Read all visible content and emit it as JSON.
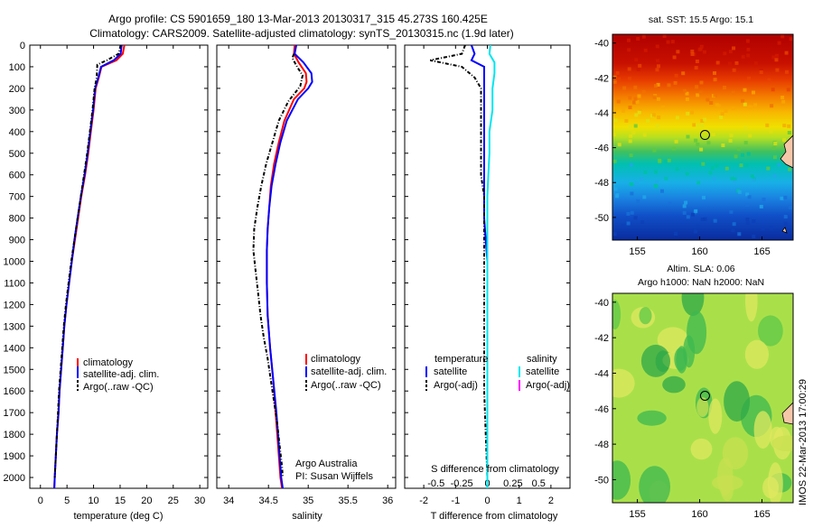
{
  "header": {
    "line1": "Argo profile: CS 5901659_180 13-Mar-2013 20130317_315 45.273S 160.425E",
    "line2": "Climatology: CARS2009. Satellite-adjusted climatology: synTS_20130315.nc (1.9d later)"
  },
  "colors": {
    "climatology": "#ff0000",
    "satellite": "#0000ff",
    "argo": "#000000",
    "salinity_satellite": "#00e5ee",
    "salinity_argo": "#ff00ff"
  },
  "depth_axis": {
    "range": [
      0,
      2050
    ],
    "ticks": [
      0,
      100,
      200,
      300,
      400,
      500,
      600,
      700,
      800,
      900,
      1000,
      1100,
      1200,
      1300,
      1400,
      1500,
      1600,
      1700,
      1800,
      1900,
      2000
    ]
  },
  "temperature_panel": {
    "xlabel": "temperature (deg C)",
    "xlim": [
      -2,
      31.5
    ],
    "xticks": [
      0,
      5,
      10,
      15,
      20,
      25,
      30
    ],
    "legend": [
      "climatology",
      "satellite-adj. clim.",
      "Argo(..raw -QC)"
    ]
  },
  "salinity_panel": {
    "xlabel": "salinity",
    "xlim": [
      33.85,
      36.1
    ],
    "xticks": [
      34,
      34.5,
      35,
      35.5,
      36
    ],
    "xtick_labels": [
      "34",
      "34.5",
      "35",
      "35.5",
      "36"
    ],
    "legend": [
      "climatology",
      "satellite-adj. clim.",
      "Argo(..raw -QC)"
    ],
    "note_line1": "Argo Australia",
    "note_line2": "PI: Susan Wijffels"
  },
  "difference_panel": {
    "xlabel": "T difference from climatology",
    "xlim": [
      -2.6,
      2.6
    ],
    "xticks": [
      -2,
      -1,
      0,
      1,
      2
    ],
    "top_label": "S difference from climatology",
    "top_ticks": [
      -0.5,
      -0.25,
      0,
      0.25,
      0.5
    ],
    "top_tick_labels": [
      "-0.5",
      "-0.25",
      "0",
      "0.25",
      "0.5"
    ],
    "legend_temperature_title": "temperature",
    "legend_salinity_title": "salinity",
    "legend_temperature": [
      "satellite",
      "Argo(-adj)"
    ],
    "legend_salinity": [
      "satellite",
      "Argo(-adj)"
    ]
  },
  "sst_map": {
    "title": "sat. SST: 15.5 Argo: 15.1",
    "lon_ticks": [
      155,
      160,
      165
    ],
    "lat_ticks": [
      -40,
      -42,
      -44,
      -46,
      -48,
      -50
    ],
    "profile_location": [
      160.425,
      -45.273
    ]
  },
  "sla_map": {
    "title_line1": "Altim. SLA: 0.06",
    "title_line2": "Argo h1000: NaN h2000: NaN",
    "lon_ticks": [
      155,
      160,
      165
    ],
    "lat_ticks": [
      -40,
      -42,
      -44,
      -46,
      -48,
      -50
    ],
    "profile_location": [
      160.425,
      -45.273
    ]
  },
  "side_stamp": "IMOS 22-Mar-2013 17:00:29",
  "chart_data": [
    {
      "type": "line",
      "name": "temperature profile",
      "y": "depth",
      "series": [
        {
          "name": "climatology",
          "points": [
            [
              15.8,
              0
            ],
            [
              15.5,
              40
            ],
            [
              14.3,
              70
            ],
            [
              11.5,
              100
            ],
            [
              11.0,
              150
            ],
            [
              10.4,
              200
            ],
            [
              10.0,
              300
            ],
            [
              9.5,
              400
            ],
            [
              9.0,
              500
            ],
            [
              8.4,
              600
            ],
            [
              7.7,
              700
            ],
            [
              7.1,
              800
            ],
            [
              6.5,
              900
            ],
            [
              5.9,
              1000
            ],
            [
              5.4,
              1100
            ],
            [
              4.9,
              1200
            ],
            [
              4.5,
              1300
            ],
            [
              4.2,
              1400
            ],
            [
              3.9,
              1500
            ],
            [
              3.6,
              1600
            ],
            [
              3.4,
              1700
            ],
            [
              3.1,
              1800
            ],
            [
              2.9,
              1900
            ],
            [
              2.7,
              2000
            ],
            [
              2.6,
              2050
            ]
          ]
        },
        {
          "name": "satellite-adj. clim.",
          "points": [
            [
              15.3,
              0
            ],
            [
              15.1,
              40
            ],
            [
              13.8,
              70
            ],
            [
              11.4,
              100
            ],
            [
              10.9,
              150
            ],
            [
              10.3,
              200
            ],
            [
              9.9,
              300
            ],
            [
              9.4,
              400
            ],
            [
              8.9,
              500
            ],
            [
              8.3,
              600
            ],
            [
              7.6,
              700
            ],
            [
              7.0,
              800
            ],
            [
              6.4,
              900
            ],
            [
              5.9,
              1000
            ],
            [
              5.4,
              1100
            ],
            [
              4.9,
              1200
            ],
            [
              4.5,
              1300
            ],
            [
              4.2,
              1400
            ],
            [
              3.9,
              1500
            ],
            [
              3.6,
              1600
            ],
            [
              3.4,
              1700
            ],
            [
              3.1,
              1800
            ],
            [
              2.9,
              1900
            ],
            [
              2.7,
              2000
            ],
            [
              2.6,
              2050
            ]
          ]
        },
        {
          "name": "Argo(..raw -QC)",
          "points": [
            [
              15.1,
              0
            ],
            [
              14.7,
              40
            ],
            [
              12.5,
              70
            ],
            [
              10.7,
              90
            ],
            [
              10.6,
              150
            ],
            [
              10.2,
              200
            ],
            [
              9.8,
              300
            ],
            [
              9.3,
              400
            ],
            [
              8.8,
              500
            ],
            [
              8.2,
              600
            ],
            [
              7.6,
              700
            ],
            [
              7.0,
              800
            ],
            [
              6.4,
              900
            ],
            [
              5.8,
              1000
            ],
            [
              5.3,
              1100
            ],
            [
              4.8,
              1200
            ],
            [
              4.4,
              1300
            ],
            [
              4.1,
              1400
            ],
            [
              3.8,
              1500
            ],
            [
              3.5,
              1600
            ],
            [
              3.3,
              1700
            ],
            [
              3.1,
              1800
            ],
            [
              2.9,
              1900
            ],
            [
              2.7,
              2000
            ]
          ]
        }
      ]
    },
    {
      "type": "line",
      "name": "salinity profile",
      "y": "depth",
      "series": [
        {
          "name": "climatology",
          "points": [
            [
              34.83,
              0
            ],
            [
              34.82,
              40
            ],
            [
              34.88,
              80
            ],
            [
              34.97,
              130
            ],
            [
              34.98,
              170
            ],
            [
              34.95,
              200
            ],
            [
              34.82,
              250
            ],
            [
              34.7,
              350
            ],
            [
              34.63,
              450
            ],
            [
              34.57,
              550
            ],
            [
              34.53,
              650
            ],
            [
              34.51,
              750
            ],
            [
              34.49,
              850
            ],
            [
              34.48,
              950
            ],
            [
              34.48,
              1100
            ],
            [
              34.49,
              1250
            ],
            [
              34.52,
              1400
            ],
            [
              34.56,
              1550
            ],
            [
              34.59,
              1700
            ],
            [
              34.62,
              1850
            ],
            [
              34.65,
              2000
            ],
            [
              34.67,
              2050
            ]
          ]
        },
        {
          "name": "satellite-adj. clim.",
          "points": [
            [
              34.85,
              0
            ],
            [
              34.83,
              40
            ],
            [
              34.94,
              80
            ],
            [
              35.04,
              130
            ],
            [
              35.05,
              170
            ],
            [
              35.0,
              200
            ],
            [
              34.87,
              250
            ],
            [
              34.73,
              350
            ],
            [
              34.65,
              450
            ],
            [
              34.59,
              550
            ],
            [
              34.54,
              650
            ],
            [
              34.51,
              750
            ],
            [
              34.49,
              850
            ],
            [
              34.48,
              950
            ],
            [
              34.48,
              1100
            ],
            [
              34.49,
              1250
            ],
            [
              34.52,
              1400
            ],
            [
              34.56,
              1550
            ],
            [
              34.6,
              1700
            ],
            [
              34.63,
              1850
            ],
            [
              34.66,
              2000
            ],
            [
              34.68,
              2050
            ]
          ]
        },
        {
          "name": "Argo(..raw -QC)",
          "points": [
            [
              34.82,
              40
            ],
            [
              34.8,
              60
            ],
            [
              34.86,
              100
            ],
            [
              34.93,
              140
            ],
            [
              34.9,
              190
            ],
            [
              34.75,
              260
            ],
            [
              34.63,
              350
            ],
            [
              34.55,
              450
            ],
            [
              34.47,
              550
            ],
            [
              34.41,
              650
            ],
            [
              34.36,
              750
            ],
            [
              34.32,
              850
            ],
            [
              34.31,
              950
            ],
            [
              34.34,
              1050
            ],
            [
              34.37,
              1150
            ],
            [
              34.4,
              1250
            ],
            [
              34.44,
              1350
            ],
            [
              34.49,
              1450
            ],
            [
              34.53,
              1550
            ],
            [
              34.57,
              1650
            ],
            [
              34.61,
              1750
            ],
            [
              34.64,
              1850
            ],
            [
              34.67,
              1950
            ],
            [
              34.68,
              2000
            ]
          ]
        }
      ]
    },
    {
      "type": "line",
      "name": "difference from climatology",
      "y": "depth",
      "series": [
        {
          "name": "temperature satellite",
          "units": "deg C",
          "points": [
            [
              -0.5,
              0
            ],
            [
              -0.4,
              40
            ],
            [
              -0.5,
              70
            ],
            [
              -0.1,
              100
            ],
            [
              -0.1,
              150
            ],
            [
              -0.1,
              200
            ],
            [
              -0.1,
              300
            ],
            [
              -0.1,
              400
            ],
            [
              -0.1,
              500
            ],
            [
              -0.1,
              600
            ],
            [
              -0.1,
              700
            ],
            [
              -0.1,
              800
            ],
            [
              -0.05,
              900
            ],
            [
              0,
              1000
            ],
            [
              0,
              1500
            ],
            [
              0,
              2000
            ],
            [
              0,
              2050
            ]
          ]
        },
        {
          "name": "temperature Argo(-adj)",
          "units": "deg C",
          "points": [
            [
              -0.7,
              0
            ],
            [
              -0.8,
              40
            ],
            [
              -1.8,
              70
            ],
            [
              -0.8,
              100
            ],
            [
              -0.4,
              150
            ],
            [
              -0.2,
              200
            ],
            [
              -0.2,
              300
            ],
            [
              -0.2,
              400
            ],
            [
              -0.2,
              500
            ],
            [
              -0.2,
              600
            ],
            [
              -0.1,
              700
            ],
            [
              -0.1,
              800
            ],
            [
              -0.1,
              1000
            ],
            [
              -0.1,
              1200
            ],
            [
              -0.1,
              1400
            ],
            [
              -0.1,
              1600
            ],
            [
              -0.05,
              1800
            ],
            [
              0,
              2000
            ]
          ]
        },
        {
          "name": "salinity satellite",
          "units": "psu",
          "points": [
            [
              0.03,
              0
            ],
            [
              0.02,
              40
            ],
            [
              0.07,
              80
            ],
            [
              0.07,
              130
            ],
            [
              0.05,
              200
            ],
            [
              0.05,
              300
            ],
            [
              0.02,
              400
            ],
            [
              0.02,
              500
            ],
            [
              0.01,
              600
            ],
            [
              0,
              700
            ],
            [
              0,
              1000
            ],
            [
              0,
              1500
            ],
            [
              0,
              2000
            ],
            [
              0,
              2050
            ]
          ]
        }
      ]
    }
  ]
}
